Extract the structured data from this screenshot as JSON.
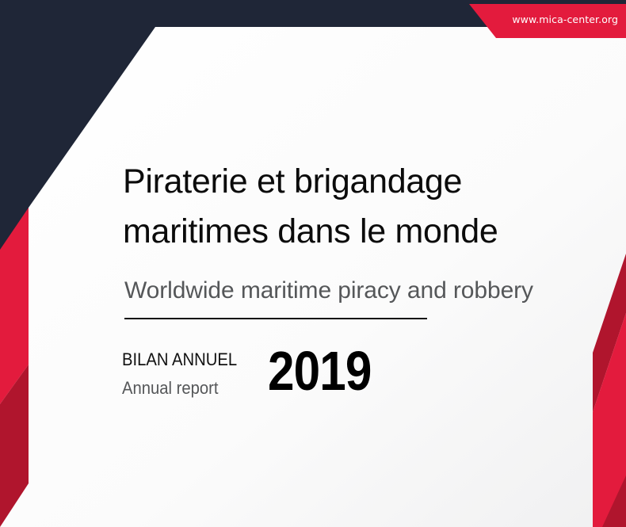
{
  "header": {
    "url": "www.mica-center.org"
  },
  "cover": {
    "title_line1": "Piraterie et brigandage",
    "title_line2": "maritimes dans le monde",
    "subtitle": "Worldwide maritime piracy and robbery",
    "report_label_fr": "BILAN ANNUEL",
    "report_label_en": "Annual report",
    "year": "2019"
  },
  "colors": {
    "navy": "#1f2637",
    "red": "#e31b3d",
    "dark_red": "#b0152d",
    "page_background": "#ffffff"
  }
}
